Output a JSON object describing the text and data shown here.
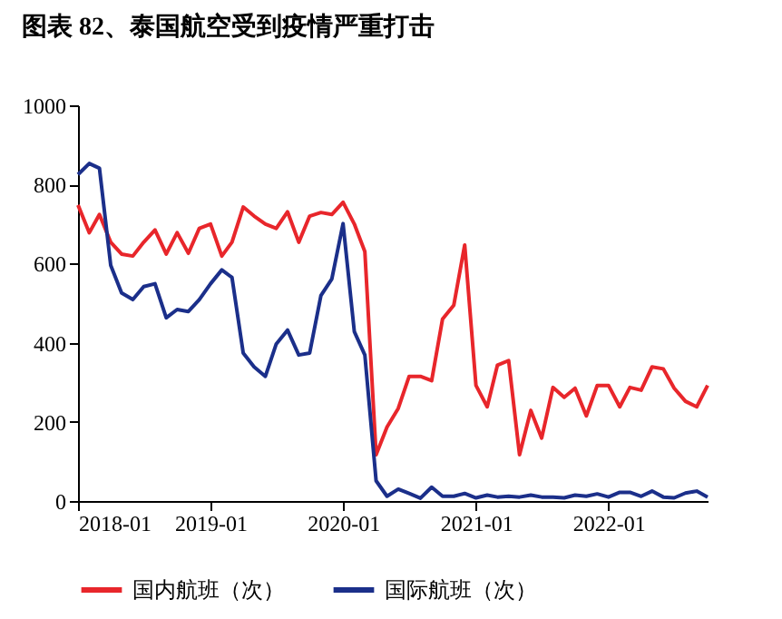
{
  "chart_data": {
    "type": "line",
    "title": "图表 82、泰国航空受到疫情严重打击",
    "x": [
      "2018-01",
      "2018-02",
      "2018-03",
      "2018-04",
      "2018-05",
      "2018-06",
      "2018-07",
      "2018-08",
      "2018-09",
      "2018-10",
      "2018-11",
      "2018-12",
      "2019-01",
      "2019-02",
      "2019-03",
      "2019-04",
      "2019-05",
      "2019-06",
      "2019-07",
      "2019-08",
      "2019-09",
      "2019-10",
      "2019-11",
      "2019-12",
      "2020-01",
      "2020-02",
      "2020-03",
      "2020-04",
      "2020-05",
      "2020-06",
      "2020-07",
      "2020-08",
      "2020-09",
      "2020-10",
      "2020-11",
      "2020-12",
      "2021-01",
      "2021-02",
      "2021-03",
      "2021-04",
      "2021-05",
      "2021-06",
      "2021-07",
      "2021-08",
      "2021-09",
      "2021-10",
      "2021-11",
      "2021-12",
      "2022-01",
      "2022-02",
      "2022-03",
      "2022-04",
      "2022-05",
      "2022-06",
      "2022-07",
      "2022-08",
      "2022-09",
      "2022-10"
    ],
    "series": [
      {
        "name": "国内航班（次）",
        "color": "#e8262b",
        "values": [
          748,
          678,
          724,
          654,
          624,
          619,
          654,
          685,
          624,
          678,
          626,
          689,
          700,
          619,
          654,
          743,
          720,
          700,
          689,
          731,
          654,
          720,
          729,
          724,
          755,
          700,
          630,
          117,
          187,
          234,
          315,
          315,
          304,
          460,
          495,
          647,
          292,
          238,
          343,
          355,
          117,
          229,
          159,
          287,
          262,
          285,
          215,
          292,
          292,
          238,
          287,
          280,
          339,
          334,
          285,
          252,
          238,
          292
        ]
      },
      {
        "name": "国际航班（次）",
        "color": "#1b2f8a",
        "values": [
          825,
          853,
          841,
          596,
          526,
          509,
          542,
          549,
          463,
          484,
          479,
          509,
          549,
          584,
          565,
          374,
          339,
          315,
          397,
          432,
          369,
          374,
          519,
          561,
          701,
          428,
          369,
          51,
          12,
          30,
          19,
          7,
          35,
          12,
          12,
          19,
          8,
          15,
          10,
          12,
          10,
          15,
          10,
          10,
          8,
          15,
          12,
          18,
          10,
          22,
          22,
          12,
          25,
          10,
          8,
          20,
          25,
          10
        ]
      }
    ],
    "xlim": [
      "2018-01",
      "2022-10"
    ],
    "xticks": [
      "2018-01",
      "2019-01",
      "2020-01",
      "2021-01",
      "2022-01"
    ],
    "ylim": [
      0,
      1000
    ],
    "yticks": [
      0,
      200,
      400,
      600,
      800,
      1000
    ],
    "grid": false,
    "legend": "bottom",
    "marker": "none",
    "line_style": "solid"
  }
}
